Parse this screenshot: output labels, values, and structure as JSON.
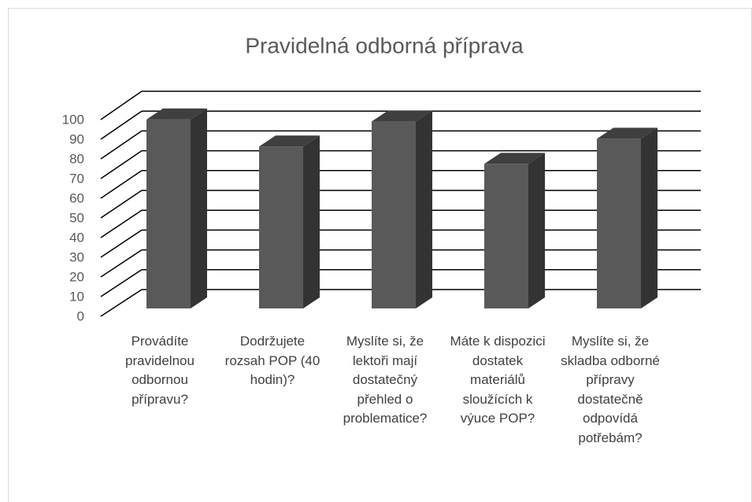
{
  "chart_data": {
    "type": "bar3d",
    "title": "Pravidelná odborná příprava",
    "categories": [
      "Provádíte pravidelnou odbornou přípravu?",
      "Dodržujete rozsah POP (40 hodin)?",
      "Myslíte si, že lektoři mají dostatečný přehled o problematice?",
      "Máte k dispozici dostatek materiálů sloužících k výuce POP?",
      "Myslíte si, že skladba odborné přípravy dostatečně odpovídá potřebám?"
    ],
    "values": [
      98,
      84,
      97,
      75,
      88
    ],
    "color": "#595959",
    "ylim": [
      0,
      100
    ],
    "yticks": [
      0,
      10,
      20,
      30,
      40,
      50,
      60,
      70,
      80,
      90,
      100
    ],
    "grid": true
  }
}
